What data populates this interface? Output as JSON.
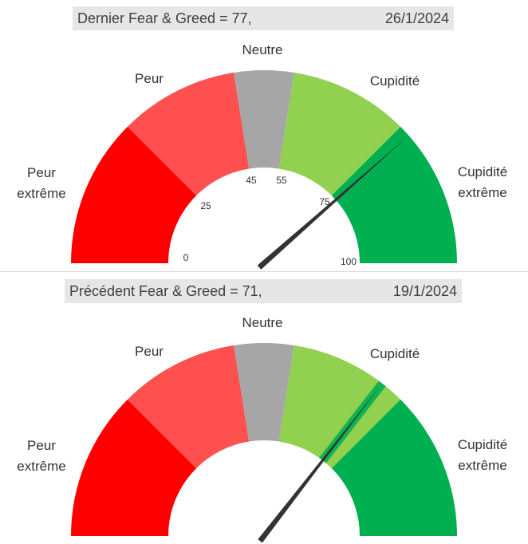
{
  "chart_data": [
    {
      "type": "gauge",
      "title": "Dernier Fear & Greed = 77,",
      "date": "26/1/2024",
      "value": 77,
      "range": [
        0,
        100
      ],
      "zones": [
        {
          "label": "Peur extrême",
          "from": 0,
          "to": 25,
          "color": "#ff0000"
        },
        {
          "label": "Peur",
          "from": 25,
          "to": 45,
          "color": "#ff5050"
        },
        {
          "label": "Neutre",
          "from": 45,
          "to": 55,
          "color": "#a6a6a6"
        },
        {
          "label": "Cupidité",
          "from": 55,
          "to": 75,
          "color": "#92d050"
        },
        {
          "label": "Cupidité extrême",
          "from": 75,
          "to": 100,
          "color": "#00b050"
        }
      ],
      "tick_labels": [
        "0",
        "25",
        "45",
        "55",
        "75",
        "100"
      ]
    },
    {
      "type": "gauge",
      "title": "Précédent Fear & Greed = 71,",
      "date": "19/1/2024",
      "value": 71,
      "range": [
        0,
        100
      ],
      "zones": [
        {
          "label": "Peur extrême",
          "from": 0,
          "to": 25,
          "color": "#ff0000"
        },
        {
          "label": "Peur",
          "from": 25,
          "to": 45,
          "color": "#ff5050"
        },
        {
          "label": "Neutre",
          "from": 45,
          "to": 55,
          "color": "#a6a6a6"
        },
        {
          "label": "Cupidité",
          "from": 55,
          "to": 75,
          "color": "#92d050"
        },
        {
          "label": "Cupidité extrême",
          "from": 75,
          "to": 100,
          "color": "#00b050"
        }
      ]
    }
  ]
}
